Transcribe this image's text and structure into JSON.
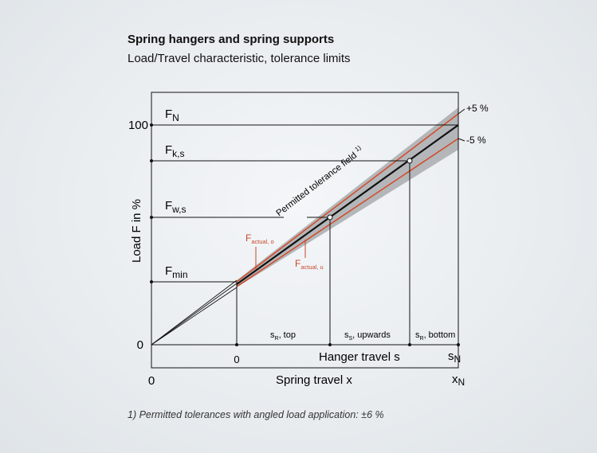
{
  "title": "Spring hangers and spring supports",
  "subtitle": "Load/Travel characteristic, tolerance limits",
  "footnote": "1) Permitted tolerances with angled load application: ±6 %",
  "y_axis": {
    "label": "Load F in %",
    "tick_100": "100",
    "tick_0": "0"
  },
  "x_axis": {
    "label": "Spring travel x",
    "tick_0": "0",
    "tick_end": "x",
    "tick_end_sub": "N"
  },
  "hanger_axis": {
    "label": "Hanger travel s",
    "tick_0": "0",
    "tick_end": "s",
    "tick_end_sub": "N"
  },
  "load_levels": {
    "fn": {
      "main": "F",
      "sub": "N"
    },
    "fks": {
      "main": "F",
      "sub": "k,s"
    },
    "fws": {
      "main": "F",
      "sub": "w,s"
    },
    "fmin": {
      "main": "F",
      "sub": "min"
    }
  },
  "tolerance": {
    "plus": "+5 %",
    "minus": "-5 %",
    "field_label": "Permitted tolerance field",
    "field_sup": "1)"
  },
  "actual": {
    "o": {
      "main": "F",
      "sub": "actual, o"
    },
    "u": {
      "main": "F",
      "sub": "actual, u"
    }
  },
  "travel_segments": {
    "top": {
      "main": "s",
      "sub": "R",
      "rest": ", top"
    },
    "upwards": {
      "main": "s",
      "sub": "S",
      "rest": ", upwards"
    },
    "bottom": {
      "main": "s",
      "sub": "R",
      "rest": ", bottom"
    }
  },
  "colors": {
    "tolerance_band": "#a9acae",
    "limit_line": "#d24a2a",
    "actual_label": "#c8482a",
    "axis": "#111111"
  }
}
